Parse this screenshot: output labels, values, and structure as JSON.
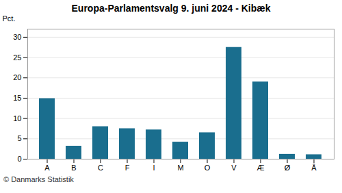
{
  "chart_data": {
    "type": "bar",
    "title": "Europa-Parlamentsvalg 9. juni 2024 - Kibæk",
    "categories": [
      "A",
      "B",
      "C",
      "F",
      "I",
      "M",
      "O",
      "V",
      "Æ",
      "Ø",
      "Å"
    ],
    "values": [
      14.9,
      3.2,
      8.0,
      7.5,
      7.2,
      4.2,
      6.5,
      27.5,
      19.0,
      1.2,
      1.1
    ],
    "color": "#1a6e8e",
    "ylabel": "Pct.",
    "ylim": [
      0,
      32
    ],
    "yticks": [
      0,
      5,
      10,
      15,
      20,
      25,
      30
    ],
    "grid": true,
    "caption": "© Danmarks Statistik"
  }
}
